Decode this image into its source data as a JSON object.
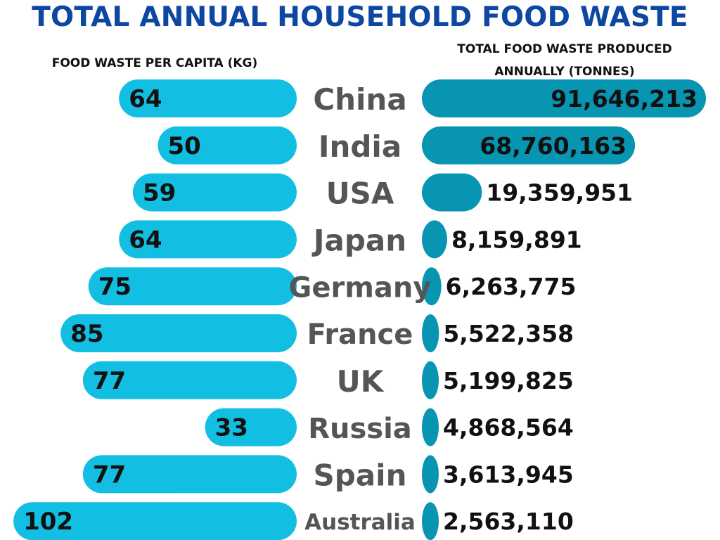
{
  "title": "TOTAL ANNUAL HOUSEHOLD FOOD WASTE",
  "left_subtitle": "FOOD WASTE PER CAPITA (KG)",
  "right_subtitle": "TOTAL FOOD WASTE PRODUCED ANNUALLY (TONNES)",
  "colors": {
    "title": "#0d47a1",
    "left_bar": "#12bfe2",
    "right_bar": "#0795b2",
    "country_text": "#555555"
  },
  "chart_data": [
    {
      "type": "bar",
      "orientation": "horizontal",
      "title": "FOOD WASTE PER CAPITA (KG)",
      "categories": [
        "China",
        "India",
        "USA",
        "Japan",
        "Germany",
        "France",
        "UK",
        "Russia",
        "Spain",
        "Australia"
      ],
      "values": [
        64,
        50,
        59,
        64,
        75,
        85,
        77,
        33,
        77,
        102
      ],
      "value_labels": [
        "64",
        "50",
        "59",
        "64",
        "75",
        "85",
        "77",
        "33",
        "77",
        "102"
      ],
      "direction": "right-to-left"
    },
    {
      "type": "bar",
      "orientation": "horizontal",
      "title": "TOTAL FOOD WASTE PRODUCED ANNUALLY (TONNES)",
      "categories": [
        "China",
        "India",
        "USA",
        "Japan",
        "Germany",
        "France",
        "UK",
        "Russia",
        "Spain",
        "Australia"
      ],
      "values": [
        91646213,
        68760163,
        19359951,
        8159891,
        6263775,
        5522358,
        5199825,
        4868564,
        3613945,
        2563110
      ],
      "value_labels": [
        "91,646,213",
        "68,760,163",
        "19,359,951",
        "8,159,891",
        "6,263,775",
        "5,522,358",
        "5,199,825",
        "4,868,564",
        "3,613,945",
        "2,563,110"
      ],
      "direction": "left-to-right"
    }
  ]
}
